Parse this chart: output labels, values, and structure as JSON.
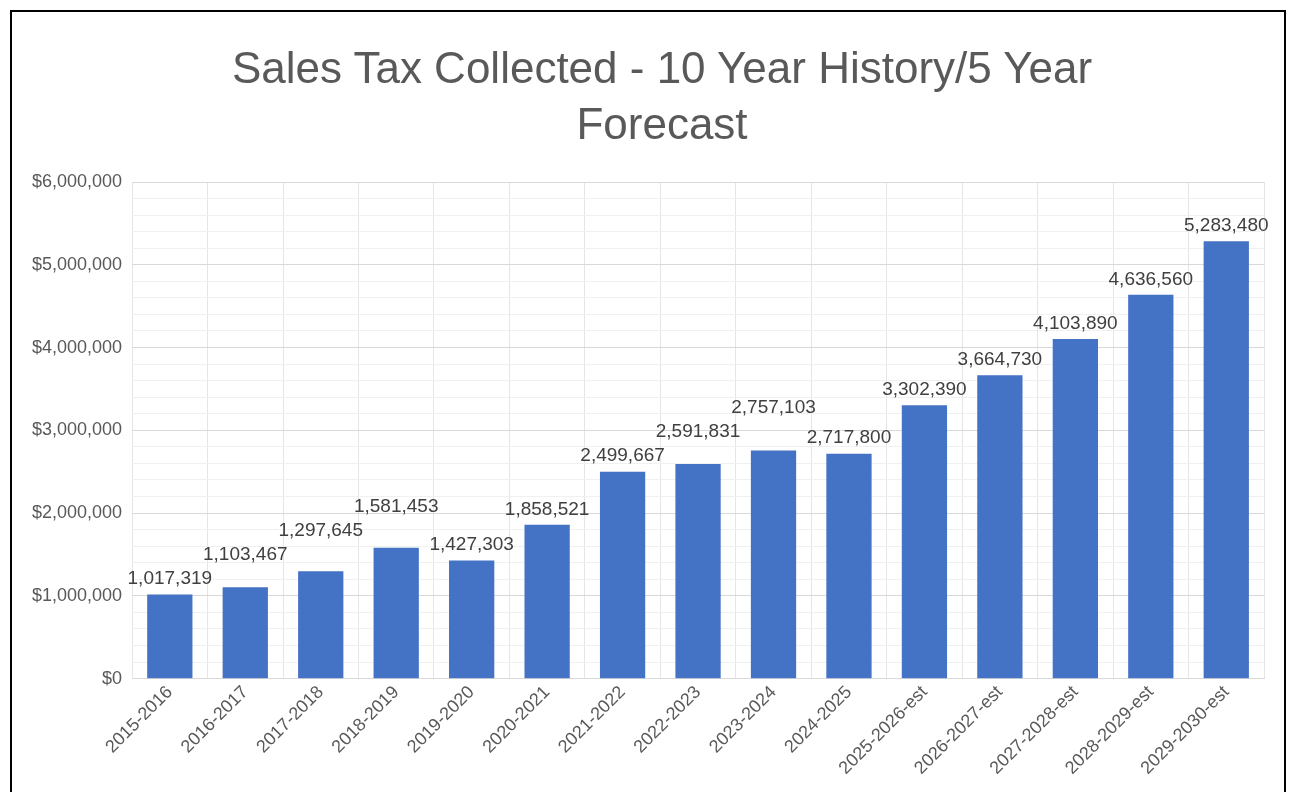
{
  "chart_data": {
    "type": "bar",
    "title": "Sales Tax Collected - 10 Year History/5 Year Forecast",
    "categories": [
      "2015-2016",
      "2016-2017",
      "2017-2018",
      "2018-2019",
      "2019-2020",
      "2020-2021",
      "2021-2022",
      "2022-2023",
      "2023-2024",
      "2024-2025",
      "2025-2026-est",
      "2026-2027-est",
      "2027-2028-est",
      "2028-2029-est",
      "2029-2030-est"
    ],
    "values": [
      1017319,
      1103467,
      1297645,
      1581453,
      1427303,
      1858521,
      2499667,
      2591831,
      2757103,
      2717800,
      3302390,
      3664730,
      4103890,
      4636560,
      5283480
    ],
    "color": "#4472c4",
    "ylim": [
      0,
      6000000
    ],
    "yticks": [
      {
        "value": 0,
        "label": "$0"
      },
      {
        "value": 200000,
        "label": null
      },
      {
        "value": 400000,
        "label": null
      },
      {
        "value": 600000,
        "label": null
      },
      {
        "value": 800000,
        "label": null
      },
      {
        "value": 1000000,
        "label": "$1,000,000"
      },
      {
        "value": 1200000,
        "label": null
      },
      {
        "value": 1400000,
        "label": null
      },
      {
        "value": 1600000,
        "label": null
      },
      {
        "value": 1800000,
        "label": null
      },
      {
        "value": 2000000,
        "label": "$2,000,000"
      },
      {
        "value": 2200000,
        "label": null
      },
      {
        "value": 2400000,
        "label": null
      },
      {
        "value": 2600000,
        "label": null
      },
      {
        "value": 2800000,
        "label": null
      },
      {
        "value": 3000000,
        "label": "$3,000,000"
      },
      {
        "value": 3200000,
        "label": null
      },
      {
        "value": 3400000,
        "label": null
      },
      {
        "value": 3600000,
        "label": null
      },
      {
        "value": 3800000,
        "label": null
      },
      {
        "value": 4000000,
        "label": "$4,000,000"
      },
      {
        "value": 4200000,
        "label": null
      },
      {
        "value": 4400000,
        "label": null
      },
      {
        "value": 4600000,
        "label": null
      },
      {
        "value": 4800000,
        "label": null
      },
      {
        "value": 5000000,
        "label": "$5,000,000"
      },
      {
        "value": 5200000,
        "label": null
      },
      {
        "value": 5400000,
        "label": null
      },
      {
        "value": 5600000,
        "label": null
      },
      {
        "value": 5800000,
        "label": null
      },
      {
        "value": 6000000,
        "label": "$6,000,000"
      }
    ],
    "grid": true,
    "value_labels": [
      "1,017,319",
      "1,103,467",
      "1,297,645",
      "1,581,453",
      "1,427,303",
      "1,858,521",
      "2,499,667",
      "2,591,831",
      "2,757,103",
      "2,717,800",
      "3,302,390",
      "3,664,730",
      "4,103,890",
      "4,636,560",
      "5,283,480"
    ]
  }
}
